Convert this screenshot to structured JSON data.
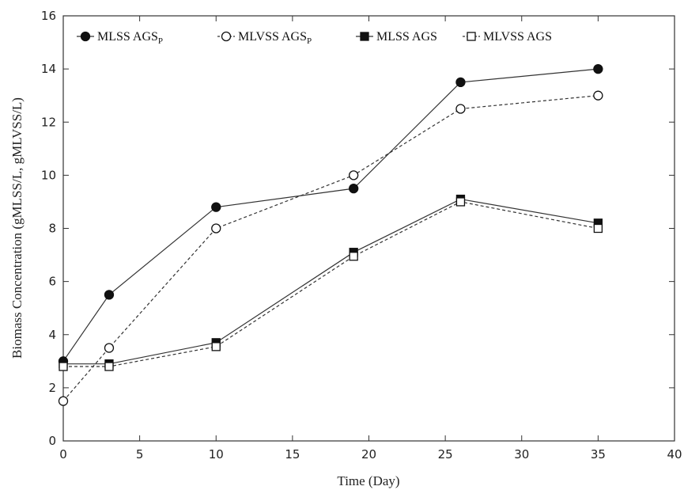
{
  "chart_data": {
    "type": "line",
    "xlabel": "Time (Day)",
    "ylabel": "Biomass Concentration (gMLSS/L, gMLVSS/L)",
    "xlim": [
      0,
      40
    ],
    "ylim": [
      0,
      16
    ],
    "xticks": [
      0,
      5,
      10,
      15,
      20,
      25,
      30,
      35,
      40
    ],
    "yticks": [
      0,
      2,
      4,
      6,
      8,
      10,
      12,
      14,
      16
    ],
    "grid": false,
    "legend_position": "top-left",
    "series": [
      {
        "name": "MLSS AGS",
        "name_sub": "P",
        "marker": "filled-circle",
        "line": "solid",
        "x": [
          0,
          3,
          10,
          19,
          26,
          35
        ],
        "y": [
          3.0,
          5.5,
          8.8,
          9.5,
          13.5,
          14.0
        ]
      },
      {
        "name": "MLVSS AGS",
        "name_sub": "P",
        "marker": "open-circle",
        "line": "dashed",
        "x": [
          0,
          3,
          10,
          19,
          26,
          35
        ],
        "y": [
          1.5,
          3.5,
          8.0,
          10.0,
          12.5,
          13.0
        ]
      },
      {
        "name": "MLSS AGS",
        "name_sub": "",
        "marker": "filled-square",
        "line": "solid",
        "x": [
          0,
          3,
          10,
          19,
          26,
          35
        ],
        "y": [
          2.9,
          2.9,
          3.7,
          7.1,
          9.1,
          8.2
        ]
      },
      {
        "name": "MLVSS AGS",
        "name_sub": "",
        "marker": "open-square",
        "line": "dashed",
        "x": [
          0,
          3,
          10,
          19,
          26,
          35
        ],
        "y": [
          2.8,
          2.8,
          3.55,
          6.95,
          9.0,
          8.0
        ]
      }
    ]
  }
}
